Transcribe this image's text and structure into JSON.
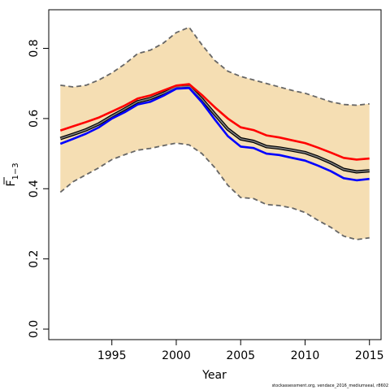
{
  "chart_data": {
    "type": "line",
    "xlabel": "Year",
    "ylabel_main": "F",
    "ylabel_sub": "1−3",
    "xlim": [
      1990.1,
      2015.9
    ],
    "ylim": [
      -0.03,
      0.91
    ],
    "xticks": [
      1995,
      2000,
      2005,
      2010,
      2015
    ],
    "xtick_labels": [
      "1995",
      "2000",
      "2005",
      "2010",
      "2015"
    ],
    "yticks": [
      0.0,
      0.2,
      0.4,
      0.6,
      0.8
    ],
    "ytick_labels": [
      "0.0",
      "0.2",
      "0.4",
      "0.6",
      "0.8"
    ],
    "grid": false,
    "x": [
      1991,
      1992,
      1993,
      1994,
      1995,
      1996,
      1997,
      1998,
      1999,
      2000,
      2001,
      2002,
      2003,
      2004,
      2005,
      2006,
      2007,
      2008,
      2009,
      2010,
      2011,
      2012,
      2013,
      2014,
      2015
    ],
    "band": {
      "upper": [
        0.695,
        0.69,
        0.695,
        0.71,
        0.73,
        0.755,
        0.785,
        0.795,
        0.815,
        0.845,
        0.86,
        0.81,
        0.765,
        0.735,
        0.72,
        0.71,
        0.7,
        0.69,
        0.68,
        0.672,
        0.66,
        0.648,
        0.64,
        0.638,
        0.642
      ],
      "lower": [
        0.39,
        0.42,
        0.44,
        0.46,
        0.483,
        0.497,
        0.51,
        0.515,
        0.523,
        0.53,
        0.525,
        0.5,
        0.46,
        0.41,
        0.375,
        0.372,
        0.355,
        0.352,
        0.345,
        0.332,
        0.31,
        0.29,
        0.265,
        0.255,
        0.26
      ],
      "fill": "#F5DEB3",
      "line_color": "#666666"
    },
    "series": [
      {
        "color": "#000000",
        "values": [
          0.543,
          0.555,
          0.568,
          0.585,
          0.607,
          0.627,
          0.648,
          0.657,
          0.672,
          0.69,
          0.692,
          0.655,
          0.612,
          0.57,
          0.542,
          0.535,
          0.52,
          0.516,
          0.51,
          0.503,
          0.49,
          0.474,
          0.455,
          0.448,
          0.451
        ]
      },
      {
        "color": "#808080",
        "values": [
          0.543,
          0.555,
          0.568,
          0.585,
          0.607,
          0.627,
          0.648,
          0.657,
          0.672,
          0.69,
          0.692,
          0.655,
          0.612,
          0.57,
          0.542,
          0.535,
          0.52,
          0.516,
          0.51,
          0.503,
          0.49,
          0.474,
          0.455,
          0.448,
          0.451
        ]
      },
      {
        "color": "#FF0000",
        "values": [
          0.566,
          0.578,
          0.59,
          0.603,
          0.62,
          0.637,
          0.657,
          0.666,
          0.68,
          0.694,
          0.698,
          0.667,
          0.632,
          0.6,
          0.575,
          0.567,
          0.552,
          0.546,
          0.538,
          0.53,
          0.517,
          0.503,
          0.488,
          0.483,
          0.486
        ]
      },
      {
        "color": "#0000FF",
        "values": [
          0.528,
          0.542,
          0.557,
          0.575,
          0.6,
          0.618,
          0.64,
          0.648,
          0.665,
          0.685,
          0.687,
          0.646,
          0.597,
          0.55,
          0.52,
          0.516,
          0.5,
          0.496,
          0.488,
          0.48,
          0.466,
          0.45,
          0.43,
          0.424,
          0.428
        ]
      }
    ],
    "source_note": "stockassessment.org,  vendace_2016_mediumseal,  r8602"
  }
}
